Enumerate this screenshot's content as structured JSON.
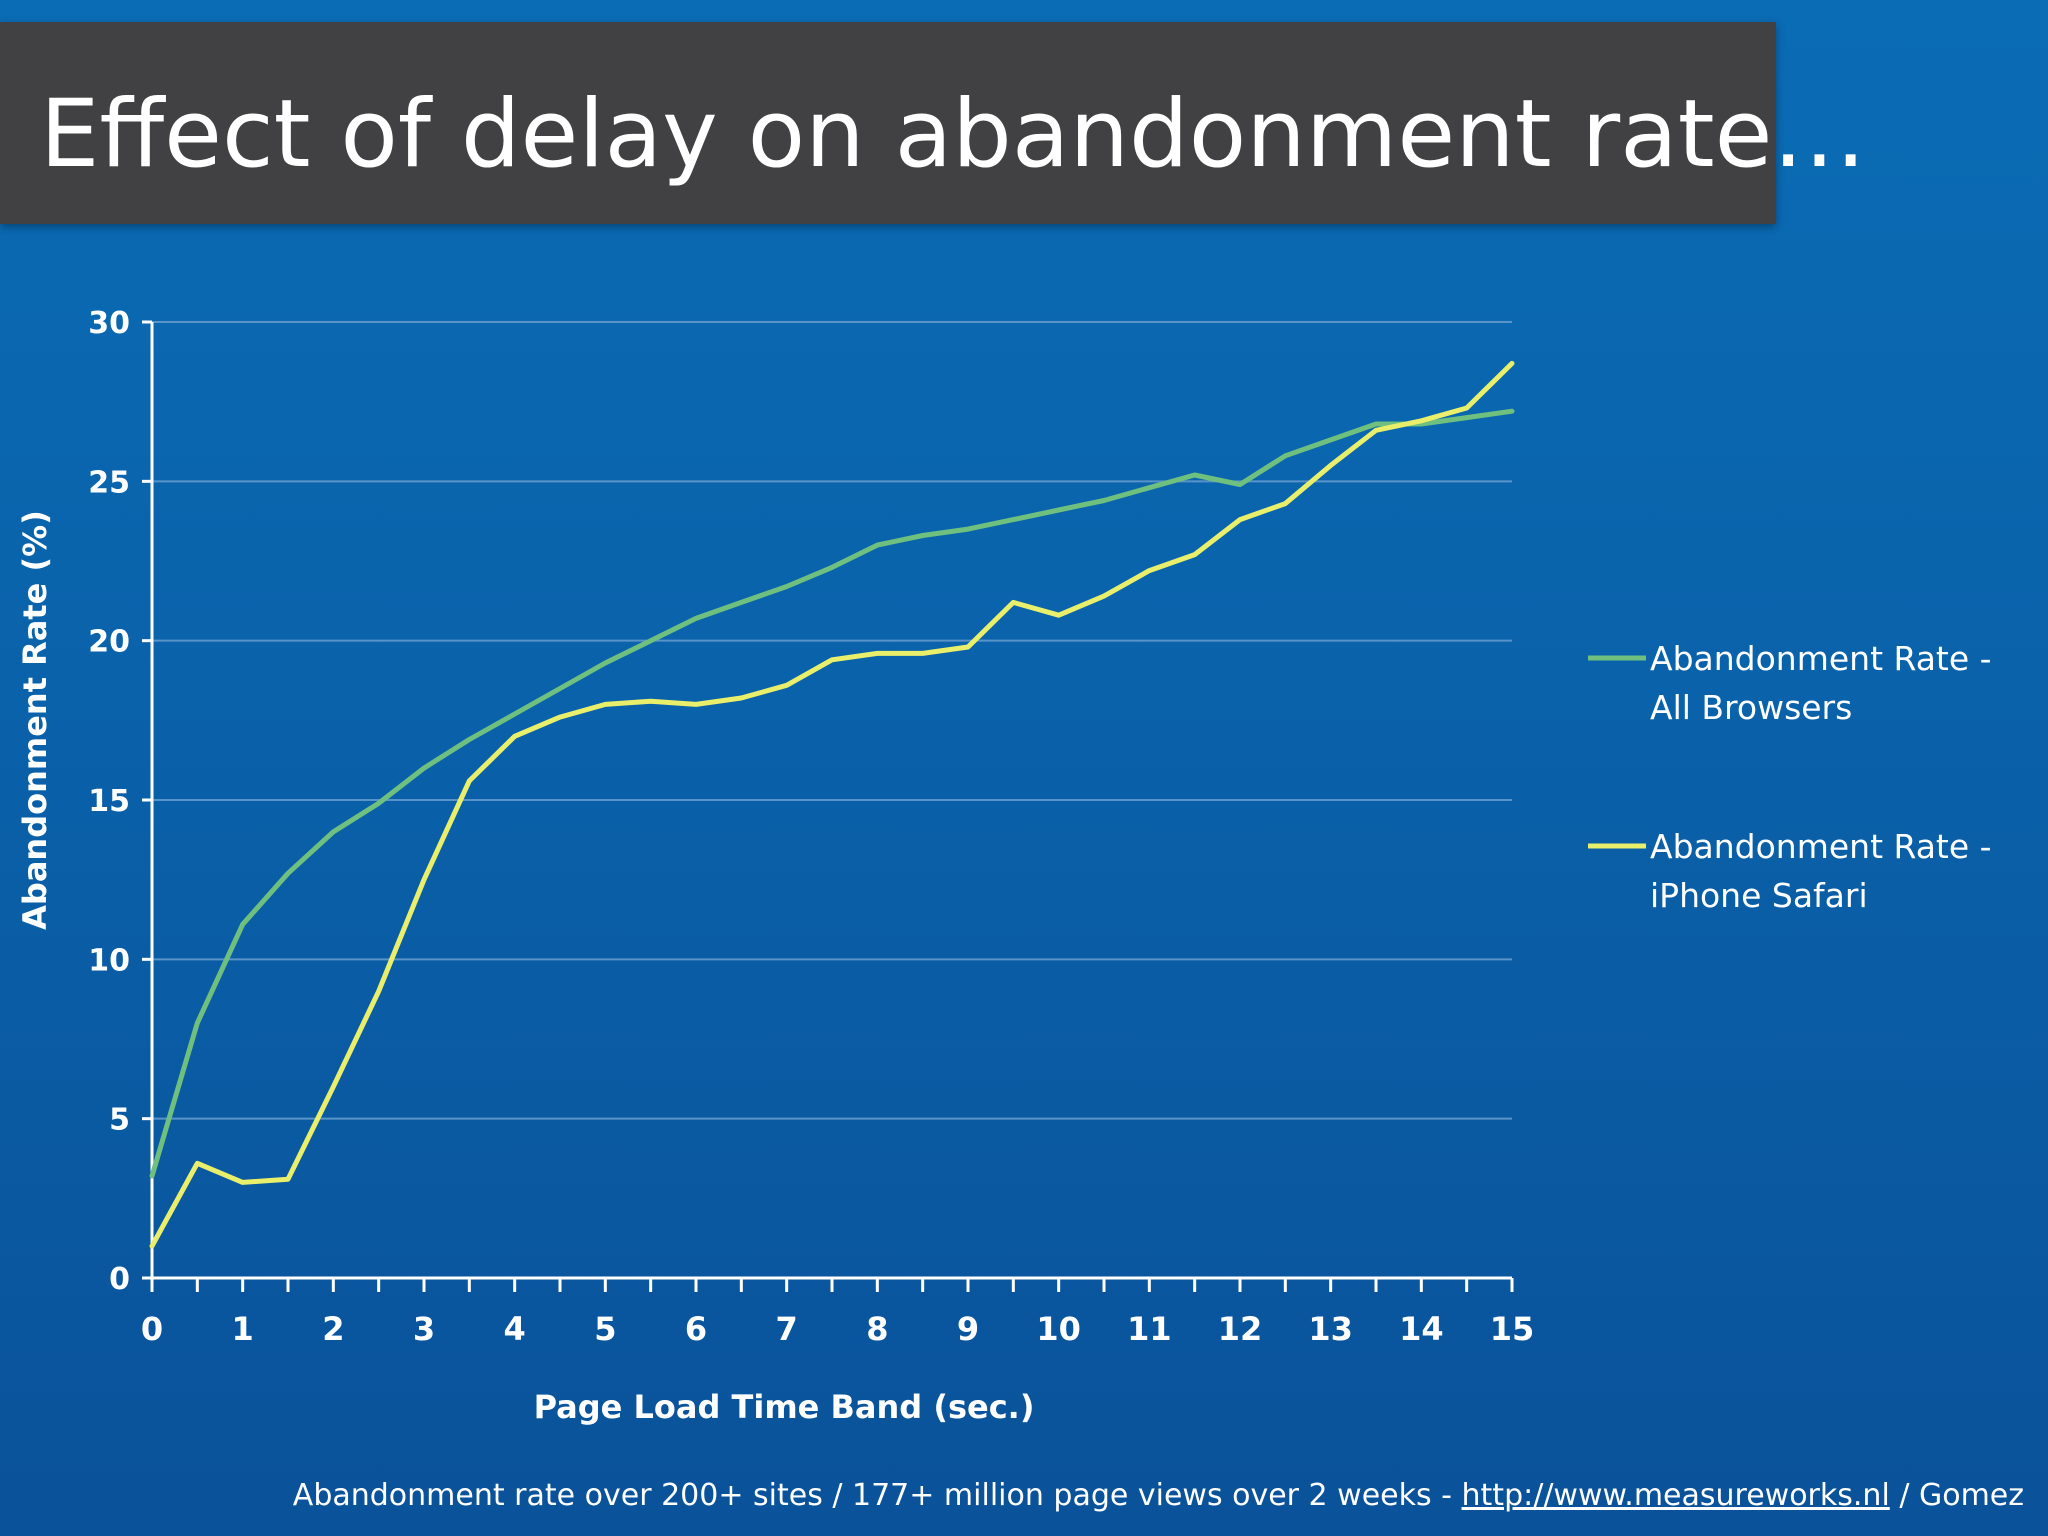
{
  "title": "Effect of delay on abandonment rate…",
  "footer": {
    "prefix": "Abandonment rate over 200+ sites / 177+ million page views over 2 weeks - ",
    "link": "http://www.measureworks.nl",
    "suffix": " / Gomez"
  },
  "colors": {
    "background": "#0a62aa",
    "title_bar": "#414042",
    "all_browsers": "#6fc07e",
    "iphone_safari": "#e9ef6a",
    "grid": "#5a93c8",
    "axis": "#ffffff"
  },
  "chart_data": {
    "type": "line",
    "xlabel": "Page Load Time Band (sec.)",
    "ylabel": "Abandonment Rate (%)",
    "xlim": [
      0,
      15
    ],
    "ylim": [
      0,
      30
    ],
    "x_ticks": [
      "0",
      "1",
      "2",
      "3",
      "4",
      "5",
      "6",
      "7",
      "8",
      "9",
      "10",
      "11",
      "12",
      "13",
      "14",
      "15"
    ],
    "y_ticks": [
      "0",
      "5",
      "10",
      "15",
      "20",
      "25",
      "30"
    ],
    "grid": "horizontal",
    "legend_position": "right",
    "x": [
      0,
      0.5,
      1,
      1.5,
      2,
      2.5,
      3,
      3.5,
      4,
      4.5,
      5,
      5.5,
      6,
      6.5,
      7,
      7.5,
      8,
      8.5,
      9,
      9.5,
      10,
      10.5,
      11,
      11.5,
      12,
      12.5,
      13,
      13.5,
      14,
      14.5,
      15
    ],
    "series": [
      {
        "name": "Abandonment Rate - All Browsers",
        "name_lines": [
          "Abandonment Rate -",
          "All Browsers"
        ],
        "color": "#6fc07e",
        "values": [
          3.2,
          8.0,
          11.1,
          12.7,
          14.0,
          14.9,
          16.0,
          16.9,
          17.7,
          18.5,
          19.3,
          20.0,
          20.7,
          21.2,
          21.7,
          22.3,
          23.0,
          23.3,
          23.5,
          23.8,
          24.1,
          24.4,
          24.8,
          25.2,
          24.9,
          25.8,
          26.3,
          26.8,
          26.8,
          27.0,
          27.2
        ]
      },
      {
        "name": "Abandonment Rate - iPhone Safari",
        "name_lines": [
          "Abandonment Rate -",
          "iPhone Safari"
        ],
        "color": "#e9ef6a",
        "values": [
          1.0,
          3.6,
          3.0,
          3.1,
          6.0,
          9.0,
          12.5,
          15.6,
          17.0,
          17.6,
          18.0,
          18.1,
          18.0,
          18.2,
          18.6,
          19.4,
          19.6,
          19.6,
          19.8,
          21.2,
          20.8,
          21.4,
          22.2,
          22.7,
          23.8,
          24.3,
          25.5,
          26.6,
          26.9,
          27.3,
          28.7
        ]
      }
    ]
  }
}
